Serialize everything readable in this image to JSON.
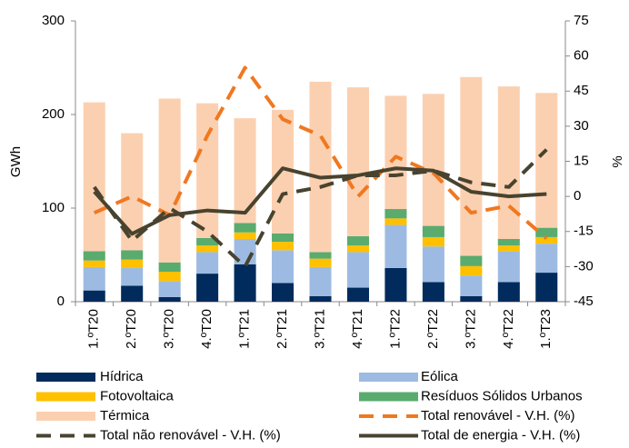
{
  "chart_data": {
    "type": "bar",
    "categories": [
      "1.ºT20",
      "2.ºT20",
      "3.ºT20",
      "4.ºT20",
      "1.ºT21",
      "2.ºT21",
      "3.ºT21",
      "4.ºT21",
      "1.ºT22",
      "2.ºT22",
      "3.ºT22",
      "4.ºT22",
      "1.ºT23"
    ],
    "ylabel": "GWh",
    "y2label": "%",
    "ylim": [
      0,
      300
    ],
    "yticks": [
      0,
      100,
      200,
      300
    ],
    "y2lim": [
      -45,
      75
    ],
    "y2ticks": [
      75,
      60,
      45,
      30,
      15,
      0,
      -15,
      -30,
      -45
    ],
    "series": [
      {
        "name": "Hídrica",
        "type": "bar",
        "color": "#002b5c",
        "values": [
          12,
          17,
          5,
          30,
          40,
          20,
          6,
          15,
          36,
          21,
          6,
          21,
          31
        ]
      },
      {
        "name": "Eólica",
        "type": "bar",
        "color": "#9dbbe2",
        "values": [
          25,
          19,
          17,
          23,
          27,
          35,
          31,
          38,
          46,
          38,
          22,
          33,
          31
        ]
      },
      {
        "name": "Fotovoltaica",
        "type": "bar",
        "color": "#ffc000",
        "values": [
          7,
          9,
          10,
          7,
          7,
          9,
          9,
          7,
          7,
          10,
          10,
          6,
          7
        ]
      },
      {
        "name": "Resíduos Sólidos Urbanos",
        "type": "bar",
        "color": "#5aab6e",
        "values": [
          10,
          10,
          10,
          8,
          10,
          9,
          7,
          10,
          10,
          12,
          11,
          7,
          10
        ]
      },
      {
        "name": "Térmica",
        "type": "bar",
        "color": "#fbd0b0",
        "values": [
          159,
          125,
          175,
          144,
          112,
          132,
          182,
          159,
          121,
          141,
          191,
          163,
          144
        ]
      },
      {
        "name": "Total renovável - V.H. (%)",
        "type": "line",
        "axis": "y2",
        "dashed": true,
        "color": "#f07820",
        "values": [
          -7,
          0,
          -8,
          26,
          55,
          33,
          26,
          0,
          17,
          10,
          -7,
          -4,
          -18
        ]
      },
      {
        "name": "Total não renovável - V.H. (%)",
        "type": "line",
        "axis": "y2",
        "dashed": true,
        "color": "#48432f",
        "values": [
          4,
          -19,
          -5,
          -15,
          -30,
          1,
          4,
          9,
          9,
          11,
          6,
          4,
          20
        ]
      },
      {
        "name": "Total de energia - V.H. (%)",
        "type": "line",
        "axis": "y2",
        "dashed": false,
        "color": "#48432f",
        "values": [
          2,
          -16,
          -8,
          -6,
          -7,
          12,
          8,
          9,
          12,
          11,
          2,
          0,
          1
        ]
      }
    ]
  }
}
